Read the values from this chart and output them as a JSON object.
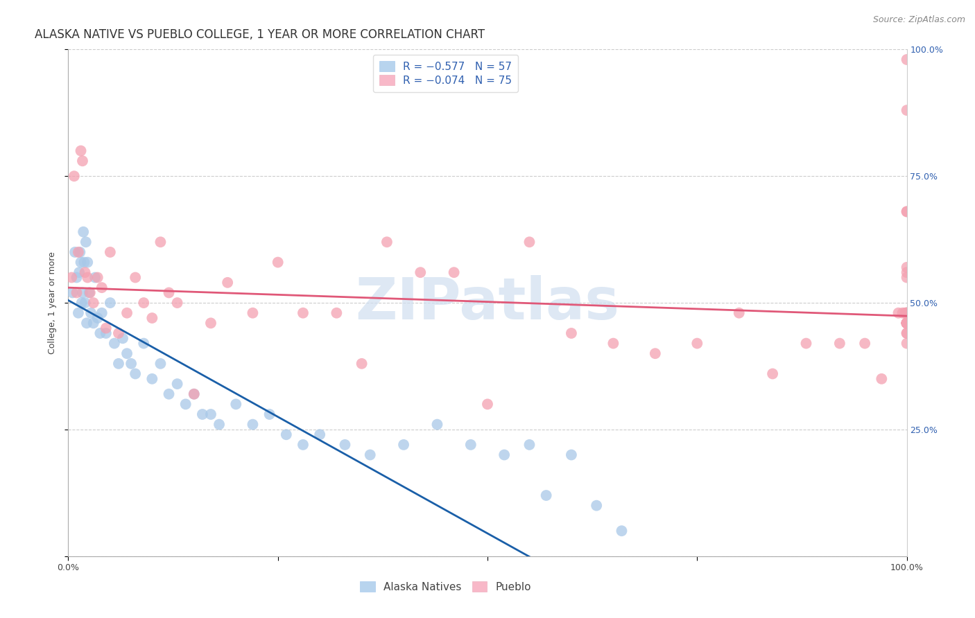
{
  "title": "ALASKA NATIVE VS PUEBLO COLLEGE, 1 YEAR OR MORE CORRELATION CHART",
  "source": "Source: ZipAtlas.com",
  "ylabel": "College, 1 year or more",
  "legend_blue_r": "R = −0.577",
  "legend_blue_n": "N = 57",
  "legend_pink_r": "R = −0.074",
  "legend_pink_n": "N = 75",
  "legend_blue_label": "Alaska Natives",
  "legend_pink_label": "Pueblo",
  "watermark": "ZIPatlas",
  "blue_scatter_color": "#a8c8e8",
  "pink_scatter_color": "#f4a0b0",
  "blue_line_color": "#1a5fa8",
  "pink_line_color": "#e05878",
  "blue_legend_patch": "#b8d4ee",
  "pink_legend_patch": "#f8b8c8",
  "right_axis_color": "#3060b0",
  "alaska_x": [
    0.5,
    0.8,
    1.0,
    1.2,
    1.3,
    1.4,
    1.5,
    1.6,
    1.7,
    1.8,
    1.9,
    2.0,
    2.1,
    2.2,
    2.3,
    2.5,
    2.7,
    3.0,
    3.2,
    3.5,
    3.8,
    4.0,
    4.5,
    5.0,
    5.5,
    6.0,
    6.5,
    7.0,
    7.5,
    8.0,
    9.0,
    10.0,
    11.0,
    12.0,
    13.0,
    14.0,
    15.0,
    16.0,
    17.0,
    18.0,
    20.0,
    22.0,
    24.0,
    26.0,
    28.0,
    30.0,
    33.0,
    36.0,
    40.0,
    44.0,
    48.0,
    52.0,
    55.0,
    57.0,
    60.0,
    63.0,
    66.0
  ],
  "alaska_y": [
    52.0,
    60.0,
    55.0,
    48.0,
    56.0,
    60.0,
    58.0,
    50.0,
    52.0,
    64.0,
    58.0,
    50.0,
    62.0,
    46.0,
    58.0,
    52.0,
    48.0,
    46.0,
    55.0,
    47.0,
    44.0,
    48.0,
    44.0,
    50.0,
    42.0,
    38.0,
    43.0,
    40.0,
    38.0,
    36.0,
    42.0,
    35.0,
    38.0,
    32.0,
    34.0,
    30.0,
    32.0,
    28.0,
    28.0,
    26.0,
    30.0,
    26.0,
    28.0,
    24.0,
    22.0,
    24.0,
    22.0,
    20.0,
    22.0,
    26.0,
    22.0,
    20.0,
    22.0,
    12.0,
    20.0,
    10.0,
    5.0
  ],
  "pueblo_x": [
    0.4,
    0.7,
    1.0,
    1.2,
    1.5,
    1.7,
    2.0,
    2.3,
    2.6,
    3.0,
    3.5,
    4.0,
    4.5,
    5.0,
    6.0,
    7.0,
    8.0,
    9.0,
    10.0,
    11.0,
    12.0,
    13.0,
    15.0,
    17.0,
    19.0,
    22.0,
    25.0,
    28.0,
    32.0,
    35.0,
    38.0,
    42.0,
    46.0,
    50.0,
    55.0,
    60.0,
    65.0,
    70.0,
    75.0,
    80.0,
    84.0,
    88.0,
    92.0,
    95.0,
    97.0,
    99.0,
    99.5,
    99.8,
    100.0,
    100.0,
    100.0,
    100.0,
    100.0,
    100.0,
    100.0,
    100.0,
    100.0,
    100.0,
    100.0,
    100.0,
    100.0,
    100.0,
    100.0,
    100.0,
    100.0,
    100.0,
    100.0,
    100.0,
    100.0,
    100.0,
    100.0,
    100.0,
    100.0,
    100.0,
    100.0
  ],
  "pueblo_y": [
    55.0,
    75.0,
    52.0,
    60.0,
    80.0,
    78.0,
    56.0,
    55.0,
    52.0,
    50.0,
    55.0,
    53.0,
    45.0,
    60.0,
    44.0,
    48.0,
    55.0,
    50.0,
    47.0,
    62.0,
    52.0,
    50.0,
    32.0,
    46.0,
    54.0,
    48.0,
    58.0,
    48.0,
    48.0,
    38.0,
    62.0,
    56.0,
    56.0,
    30.0,
    62.0,
    44.0,
    42.0,
    40.0,
    42.0,
    48.0,
    36.0,
    42.0,
    42.0,
    42.0,
    35.0,
    48.0,
    48.0,
    48.0,
    68.0,
    56.0,
    55.0,
    57.0,
    48.0,
    44.0,
    44.0,
    42.0,
    46.0,
    48.0,
    46.0,
    48.0,
    98.0,
    88.0,
    68.0,
    48.0,
    46.0,
    46.0,
    46.0,
    48.0,
    46.0,
    46.0,
    46.0,
    46.0,
    46.0,
    46.0,
    46.0
  ],
  "xlim": [
    0,
    100
  ],
  "ylim": [
    0,
    100
  ],
  "background_color": "#ffffff",
  "grid_color": "#cccccc",
  "title_fontsize": 12,
  "source_fontsize": 9,
  "axis_label_fontsize": 9,
  "tick_fontsize": 9,
  "legend_fontsize": 11,
  "watermark_color": "#d0dff0",
  "watermark_fontsize": 60,
  "blue_regression_intercept": 50.5,
  "blue_regression_slope": -0.92,
  "pink_regression_intercept": 53.0,
  "pink_regression_slope": -0.056
}
